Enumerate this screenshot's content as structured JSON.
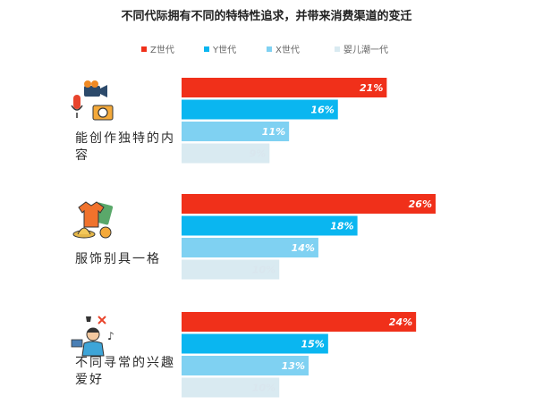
{
  "chart_data": {
    "type": "bar",
    "orientation": "horizontal",
    "title": "不同代际拥有不同的特特性追求，并带来消费渠道的变迁",
    "categories": [
      [
        "能创作独特的内",
        "容"
      ],
      [
        "服饰别具一格"
      ],
      [
        "不同寻常的兴趣",
        "爱好"
      ]
    ],
    "category_icons": [
      "vlog-camera-icon",
      "fashion-clothing-icon",
      "hobby-person-icon"
    ],
    "series": [
      {
        "name": "Z世代",
        "color": "#f0301a",
        "values": [
          21,
          26,
          24
        ],
        "labels": [
          "21%",
          "26%",
          "24%"
        ]
      },
      {
        "name": "Y世代",
        "color": "#0ab6f0",
        "values": [
          16,
          18,
          15
        ],
        "labels": [
          "16%",
          "18%",
          "15%"
        ]
      },
      {
        "name": "X世代",
        "color": "#7fd1f2",
        "values": [
          11,
          14,
          13
        ],
        "labels": [
          "11%",
          "14%",
          "13%"
        ]
      },
      {
        "name": "婴儿潮一代",
        "color": "#d9eaf1",
        "values": [
          9,
          10,
          10
        ],
        "labels": [
          "9%",
          "10%",
          "10%"
        ]
      }
    ],
    "legend_position": "top",
    "xlim": [
      0,
      26
    ],
    "grid": false
  }
}
